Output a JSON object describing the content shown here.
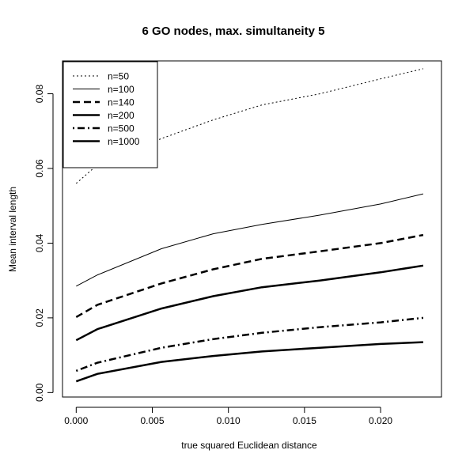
{
  "chart_data": {
    "type": "line",
    "title": "6 GO nodes, max. simultaneity 5",
    "xlabel": "true squared Euclidean distance",
    "ylabel": "Mean interval length",
    "xlim": [
      -0.0009,
      0.024
    ],
    "ylim": [
      -0.0012,
      0.0888
    ],
    "x_ticks": [
      0.0,
      0.005,
      0.01,
      0.015,
      0.02
    ],
    "x_tick_labels": [
      "0.000",
      "0.005",
      "0.010",
      "0.015",
      "0.020"
    ],
    "y_ticks": [
      0.0,
      0.02,
      0.04,
      0.06,
      0.08
    ],
    "y_tick_labels": [
      "0.00",
      "0.02",
      "0.04",
      "0.06",
      "0.08"
    ],
    "grid": false,
    "legend_position": "top-left",
    "series": [
      {
        "name": "n=50",
        "line_style": "dotted-thin",
        "x": [
          0.0,
          0.0014,
          0.0056,
          0.009,
          0.0122,
          0.016,
          0.02,
          0.0228
        ],
        "y": [
          0.056,
          0.061,
          0.068,
          0.073,
          0.077,
          0.08,
          0.084,
          0.0867
        ]
      },
      {
        "name": "n=100",
        "line_style": "solid-thin",
        "x": [
          0.0,
          0.0014,
          0.0056,
          0.009,
          0.0122,
          0.016,
          0.02,
          0.0228
        ],
        "y": [
          0.0285,
          0.0315,
          0.0385,
          0.0425,
          0.045,
          0.0475,
          0.0505,
          0.0532
        ]
      },
      {
        "name": "n=140",
        "line_style": "dashed-thick",
        "x": [
          0.0,
          0.0014,
          0.0056,
          0.009,
          0.0122,
          0.016,
          0.02,
          0.0228
        ],
        "y": [
          0.0202,
          0.0235,
          0.0292,
          0.033,
          0.0358,
          0.0378,
          0.04,
          0.0422
        ]
      },
      {
        "name": "n=200",
        "line_style": "solid-thick",
        "x": [
          0.0,
          0.0014,
          0.0056,
          0.009,
          0.0122,
          0.016,
          0.02,
          0.0228
        ],
        "y": [
          0.014,
          0.017,
          0.0225,
          0.0258,
          0.0282,
          0.03,
          0.0322,
          0.034
        ]
      },
      {
        "name": "n=500",
        "line_style": "dashdot-thick",
        "x": [
          0.0,
          0.0014,
          0.0056,
          0.009,
          0.0122,
          0.016,
          0.02,
          0.0228
        ],
        "y": [
          0.0058,
          0.008,
          0.012,
          0.0143,
          0.016,
          0.0175,
          0.0188,
          0.02
        ]
      },
      {
        "name": "n=1000",
        "line_style": "solid-thick",
        "x": [
          0.0,
          0.0014,
          0.0056,
          0.009,
          0.0122,
          0.016,
          0.02,
          0.0228
        ],
        "y": [
          0.003,
          0.005,
          0.0082,
          0.0098,
          0.011,
          0.012,
          0.013,
          0.0135
        ]
      }
    ]
  }
}
